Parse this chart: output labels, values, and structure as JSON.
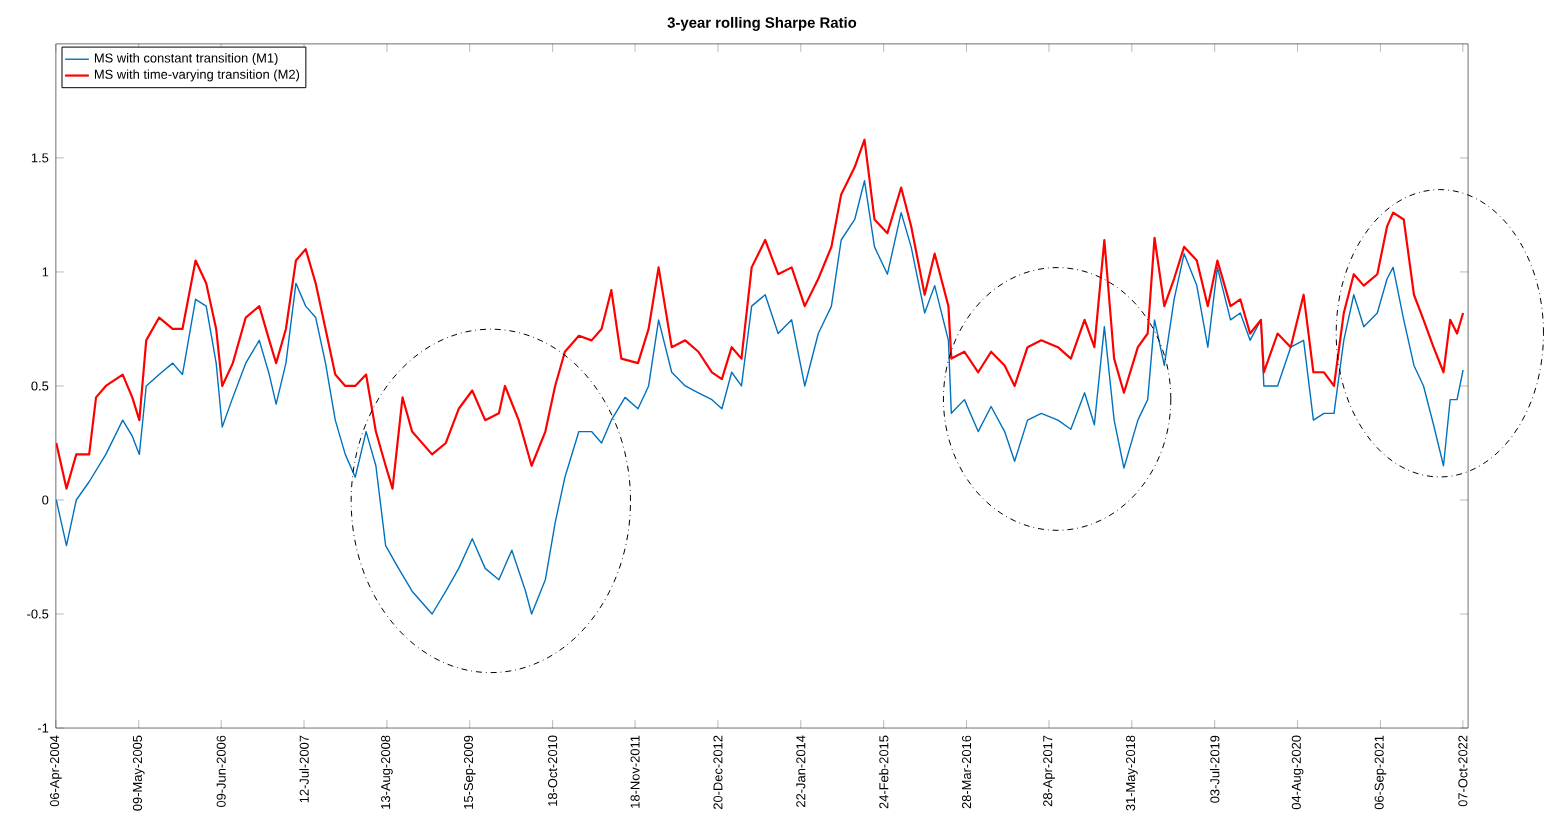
{
  "chart_data": {
    "type": "line",
    "title": "3-year rolling Sharpe Ratio",
    "xlim": [
      "2004-04-06",
      "2022-11-01"
    ],
    "xticks": [
      {
        "value": "2004-04-06",
        "label": "06-Apr-2004"
      },
      {
        "value": "2005-05-09",
        "label": "09-May-2005"
      },
      {
        "value": "2006-06-09",
        "label": "09-Jun-2006"
      },
      {
        "value": "2007-07-12",
        "label": "12-Jul-2007"
      },
      {
        "value": "2008-08-13",
        "label": "13-Aug-2008"
      },
      {
        "value": "2009-09-15",
        "label": "15-Sep-2009"
      },
      {
        "value": "2010-10-18",
        "label": "18-Oct-2010"
      },
      {
        "value": "2011-11-18",
        "label": "18-Nov-2011"
      },
      {
        "value": "2012-12-20",
        "label": "20-Dec-2012"
      },
      {
        "value": "2014-01-22",
        "label": "22-Jan-2014"
      },
      {
        "value": "2015-02-24",
        "label": "24-Feb-2015"
      },
      {
        "value": "2016-03-28",
        "label": "28-Mar-2016"
      },
      {
        "value": "2017-04-28",
        "label": "28-Apr-2017"
      },
      {
        "value": "2018-05-31",
        "label": "31-May-2018"
      },
      {
        "value": "2019-07-03",
        "label": "03-Jul-2019"
      },
      {
        "value": "2020-08-04",
        "label": "04-Aug-2020"
      },
      {
        "value": "2021-09-06",
        "label": "06-Sep-2021"
      },
      {
        "value": "2022-10-07",
        "label": "07-Oct-2022"
      }
    ],
    "ylim": [
      -1,
      2
    ],
    "yticks": [
      -1,
      -0.5,
      0,
      0.5,
      1,
      1.5
    ],
    "grid": false,
    "legend": "top left",
    "line_style": "solid",
    "series": [
      {
        "name": "MS with constant transition (M1)",
        "color": "#0072bd",
        "x": [
          "2004-04-08",
          "2004-05-27",
          "2004-07-13",
          "2004-09-13",
          "2004-12-02",
          "2005-02-21",
          "2005-04-08",
          "2005-05-12",
          "2005-06-14",
          "2005-08-15",
          "2005-10-19",
          "2005-12-05",
          "2006-02-06",
          "2006-03-29",
          "2006-05-16",
          "2006-06-14",
          "2006-08-04",
          "2006-10-05",
          "2006-12-09",
          "2007-01-26",
          "2007-02-28",
          "2007-04-16",
          "2007-06-03",
          "2007-07-20",
          "2007-09-06",
          "2007-10-23",
          "2007-12-09",
          "2008-01-26",
          "2008-03-14",
          "2008-05-05",
          "2008-06-21",
          "2008-08-07",
          "2008-10-08",
          "2008-12-12",
          "2009-03-18",
          "2009-05-23",
          "2009-07-24",
          "2009-09-27",
          "2009-11-28",
          "2010-02-02",
          "2010-04-05",
          "2010-06-10",
          "2010-07-09",
          "2010-09-13",
          "2010-10-30",
          "2010-12-16",
          "2011-02-21",
          "2011-04-23",
          "2011-06-10",
          "2011-07-27",
          "2011-10-01",
          "2011-12-02",
          "2012-01-22",
          "2012-03-10",
          "2012-05-12",
          "2012-07-16",
          "2012-09-17",
          "2012-11-21",
          "2013-01-08",
          "2013-02-24",
          "2013-04-12",
          "2013-05-31",
          "2013-08-04",
          "2013-10-05",
          "2013-12-09",
          "2014-02-10",
          "2014-04-16",
          "2014-06-18",
          "2014-08-04",
          "2014-10-08",
          "2014-11-24",
          "2015-01-11",
          "2015-03-14",
          "2015-05-19",
          "2015-07-06",
          "2015-09-09",
          "2015-10-27",
          "2016-01-01",
          "2016-01-15",
          "2016-03-18",
          "2016-05-23",
          "2016-07-24",
          "2016-09-27",
          "2016-11-14",
          "2017-01-15",
          "2017-03-22",
          "2017-06-10",
          "2017-08-11",
          "2017-10-16",
          "2017-12-02",
          "2018-01-19",
          "2018-03-07",
          "2018-04-23",
          "2018-06-29",
          "2018-08-15",
          "2018-09-17",
          "2018-11-03",
          "2018-12-20",
          "2019-02-06",
          "2019-04-08",
          "2019-05-31",
          "2019-07-16",
          "2019-09-17",
          "2019-11-03",
          "2019-12-20",
          "2020-02-10",
          "2020-02-24",
          "2020-04-30",
          "2020-07-02",
          "2020-09-02",
          "2020-10-19",
          "2020-12-09",
          "2021-01-26",
          "2021-03-14",
          "2021-05-01",
          "2021-06-18",
          "2021-08-22",
          "2021-10-08",
          "2021-11-06",
          "2021-12-27",
          "2022-02-14",
          "2022-04-01",
          "2022-05-19",
          "2022-07-06",
          "2022-08-07",
          "2022-09-09",
          "2022-10-08"
        ],
        "values": [
          0.0,
          -0.2,
          0.0,
          0.08,
          0.2,
          0.35,
          0.28,
          0.2,
          0.5,
          0.55,
          0.6,
          0.55,
          0.88,
          0.85,
          0.6,
          0.32,
          0.45,
          0.6,
          0.7,
          0.55,
          0.42,
          0.6,
          0.95,
          0.85,
          0.8,
          0.6,
          0.35,
          0.2,
          0.1,
          0.3,
          0.15,
          -0.2,
          -0.3,
          -0.4,
          -0.5,
          -0.4,
          -0.3,
          -0.17,
          -0.3,
          -0.35,
          -0.22,
          -0.4,
          -0.5,
          -0.35,
          -0.1,
          0.1,
          0.3,
          0.3,
          0.25,
          0.35,
          0.45,
          0.4,
          0.5,
          0.79,
          0.56,
          0.5,
          0.47,
          0.44,
          0.4,
          0.56,
          0.5,
          0.85,
          0.9,
          0.73,
          0.79,
          0.5,
          0.73,
          0.85,
          1.14,
          1.23,
          1.4,
          1.11,
          0.99,
          1.26,
          1.11,
          0.82,
          0.94,
          0.7,
          0.38,
          0.44,
          0.3,
          0.41,
          0.3,
          0.17,
          0.35,
          0.38,
          0.35,
          0.31,
          0.47,
          0.33,
          0.76,
          0.35,
          0.14,
          0.35,
          0.44,
          0.79,
          0.59,
          0.88,
          1.08,
          0.94,
          0.67,
          1.02,
          0.79,
          0.82,
          0.7,
          0.79,
          0.5,
          0.5,
          0.67,
          0.7,
          0.35,
          0.38,
          0.38,
          0.7,
          0.9,
          0.76,
          0.82,
          0.97,
          1.02,
          0.79,
          0.59,
          0.5,
          0.33,
          0.15,
          0.44,
          0.44,
          0.57
        ]
      },
      {
        "name": "MS with time-varying transition (M2)",
        "color": "#ff0000",
        "x": [
          "2004-04-08",
          "2004-05-27",
          "2004-07-13",
          "2004-09-13",
          "2004-10-16",
          "2004-12-02",
          "2005-02-21",
          "2005-04-08",
          "2005-05-12",
          "2005-06-14",
          "2005-08-15",
          "2005-10-19",
          "2005-12-05",
          "2006-02-06",
          "2006-03-29",
          "2006-05-16",
          "2006-06-14",
          "2006-08-04",
          "2006-10-05",
          "2006-12-09",
          "2007-01-26",
          "2007-02-28",
          "2007-04-16",
          "2007-06-03",
          "2007-07-20",
          "2007-09-06",
          "2007-10-23",
          "2007-12-09",
          "2008-01-26",
          "2008-03-14",
          "2008-05-05",
          "2008-06-21",
          "2008-08-07",
          "2008-09-09",
          "2008-10-27",
          "2008-12-12",
          "2009-03-18",
          "2009-05-23",
          "2009-07-24",
          "2009-09-27",
          "2009-11-28",
          "2010-02-02",
          "2010-03-03",
          "2010-05-08",
          "2010-07-09",
          "2010-09-13",
          "2010-10-30",
          "2010-12-16",
          "2011-02-21",
          "2011-04-23",
          "2011-06-10",
          "2011-07-27",
          "2011-09-13",
          "2011-12-02",
          "2012-01-22",
          "2012-03-10",
          "2012-05-12",
          "2012-07-16",
          "2012-09-17",
          "2012-11-21",
          "2013-01-08",
          "2013-02-24",
          "2013-04-12",
          "2013-05-31",
          "2013-08-04",
          "2013-10-05",
          "2013-12-09",
          "2014-02-10",
          "2014-04-16",
          "2014-06-18",
          "2014-08-04",
          "2014-10-08",
          "2014-11-24",
          "2015-01-11",
          "2015-03-14",
          "2015-05-19",
          "2015-07-06",
          "2015-09-09",
          "2015-10-27",
          "2016-01-01",
          "2016-01-15",
          "2016-03-18",
          "2016-05-23",
          "2016-07-24",
          "2016-09-27",
          "2016-11-14",
          "2017-01-15",
          "2017-03-22",
          "2017-06-10",
          "2017-08-11",
          "2017-10-16",
          "2017-12-02",
          "2018-01-19",
          "2018-03-07",
          "2018-04-23",
          "2018-06-29",
          "2018-08-15",
          "2018-09-17",
          "2018-11-03",
          "2018-12-20",
          "2019-02-06",
          "2019-04-08",
          "2019-05-31",
          "2019-07-16",
          "2019-09-17",
          "2019-11-03",
          "2019-12-20",
          "2020-02-10",
          "2020-02-24",
          "2020-04-30",
          "2020-07-02",
          "2020-09-02",
          "2020-10-19",
          "2020-12-09",
          "2021-01-26",
          "2021-03-14",
          "2021-05-01",
          "2021-06-18",
          "2021-08-22",
          "2021-10-08",
          "2021-11-06",
          "2021-12-27",
          "2022-02-14",
          "2022-04-01",
          "2022-05-19",
          "2022-07-06",
          "2022-08-07",
          "2022-09-09",
          "2022-10-08"
        ],
        "values": [
          0.25,
          0.05,
          0.2,
          0.2,
          0.45,
          0.5,
          0.55,
          0.45,
          0.35,
          0.7,
          0.8,
          0.75,
          0.75,
          1.05,
          0.95,
          0.75,
          0.5,
          0.6,
          0.8,
          0.85,
          0.7,
          0.6,
          0.75,
          1.05,
          1.1,
          0.95,
          0.75,
          0.55,
          0.5,
          0.5,
          0.55,
          0.3,
          0.15,
          0.05,
          0.45,
          0.3,
          0.2,
          0.25,
          0.4,
          0.48,
          0.35,
          0.38,
          0.5,
          0.35,
          0.15,
          0.3,
          0.5,
          0.65,
          0.72,
          0.7,
          0.75,
          0.92,
          0.62,
          0.6,
          0.75,
          1.02,
          0.67,
          0.7,
          0.65,
          0.56,
          0.53,
          0.67,
          0.62,
          1.02,
          1.14,
          0.99,
          1.02,
          0.85,
          0.97,
          1.11,
          1.34,
          1.46,
          1.58,
          1.23,
          1.17,
          1.37,
          1.2,
          0.9,
          1.08,
          0.85,
          0.62,
          0.65,
          0.56,
          0.65,
          0.59,
          0.5,
          0.67,
          0.7,
          0.67,
          0.62,
          0.79,
          0.67,
          1.14,
          0.62,
          0.47,
          0.67,
          0.73,
          1.15,
          0.85,
          0.97,
          1.11,
          1.05,
          0.85,
          1.05,
          0.85,
          0.88,
          0.73,
          0.79,
          0.56,
          0.73,
          0.67,
          0.9,
          0.56,
          0.56,
          0.5,
          0.82,
          0.99,
          0.94,
          0.99,
          1.2,
          1.26,
          1.23,
          0.9,
          0.79,
          0.67,
          0.56,
          0.79,
          0.73,
          0.82
        ]
      }
    ]
  }
}
